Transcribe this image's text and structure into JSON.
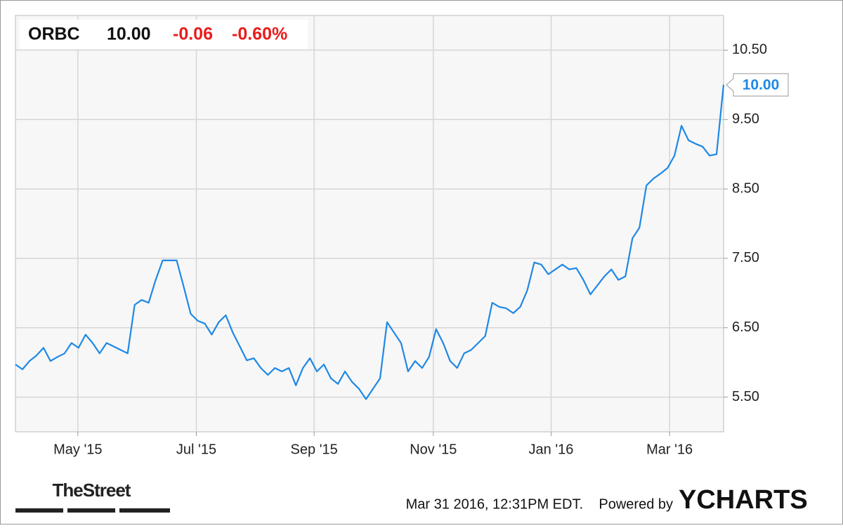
{
  "chart_data": {
    "type": "line",
    "ticker": "ORBC",
    "price": "10.00",
    "change": "-0.06",
    "change_percent": "-0.60%",
    "color": "#1e88e5",
    "grid": true,
    "values": [
      5.97,
      5.9,
      6.02,
      6.1,
      6.21,
      6.02,
      6.08,
      6.13,
      6.28,
      6.21,
      6.4,
      6.28,
      6.13,
      6.28,
      6.23,
      6.18,
      6.13,
      6.83,
      6.9,
      6.86,
      7.19,
      7.47,
      7.47,
      7.47,
      7.09,
      6.7,
      6.6,
      6.56,
      6.4,
      6.58,
      6.68,
      6.43,
      6.23,
      6.03,
      6.06,
      5.92,
      5.82,
      5.92,
      5.87,
      5.92,
      5.67,
      5.92,
      6.06,
      5.87,
      5.97,
      5.77,
      5.69,
      5.87,
      5.72,
      5.62,
      5.47,
      5.62,
      5.77,
      6.58,
      6.43,
      6.28,
      5.87,
      6.02,
      5.92,
      6.08,
      6.48,
      6.28,
      6.02,
      5.92,
      6.13,
      6.18,
      6.28,
      6.38,
      6.86,
      6.8,
      6.78,
      6.71,
      6.8,
      7.04,
      7.44,
      7.41,
      7.27,
      7.34,
      7.41,
      7.34,
      7.36,
      7.19,
      6.98,
      7.11,
      7.24,
      7.34,
      7.19,
      7.24,
      7.79,
      7.94,
      8.55,
      8.65,
      8.72,
      8.8,
      8.98,
      9.41,
      9.2,
      9.15,
      9.11,
      8.98,
      9.0,
      10.0
    ],
    "xlim": [
      0,
      101
    ],
    "xticks": [
      {
        "value": 8.9,
        "label": "May '15"
      },
      {
        "value": 25.8,
        "label": "Jul '15"
      },
      {
        "value": 42.6,
        "label": "Sep '15"
      },
      {
        "value": 59.6,
        "label": "Nov '15"
      },
      {
        "value": 76.4,
        "label": "Jan '16"
      },
      {
        "value": 93.3,
        "label": "Mar '16"
      }
    ],
    "ylim": [
      5.0,
      11.0
    ],
    "yticks": [
      {
        "value": 5.5,
        "label": "5.50"
      },
      {
        "value": 6.5,
        "label": "6.50"
      },
      {
        "value": 7.5,
        "label": "7.50"
      },
      {
        "value": 8.5,
        "label": "8.50"
      },
      {
        "value": 9.5,
        "label": "9.50"
      },
      {
        "value": 10.5,
        "label": "10.50"
      }
    ]
  },
  "footer": {
    "timestamp": "Mar 31 2016, 12:31PM EDT.",
    "powered_by": "Powered by",
    "brand": "YCHARTS",
    "source": "TheStreet"
  }
}
